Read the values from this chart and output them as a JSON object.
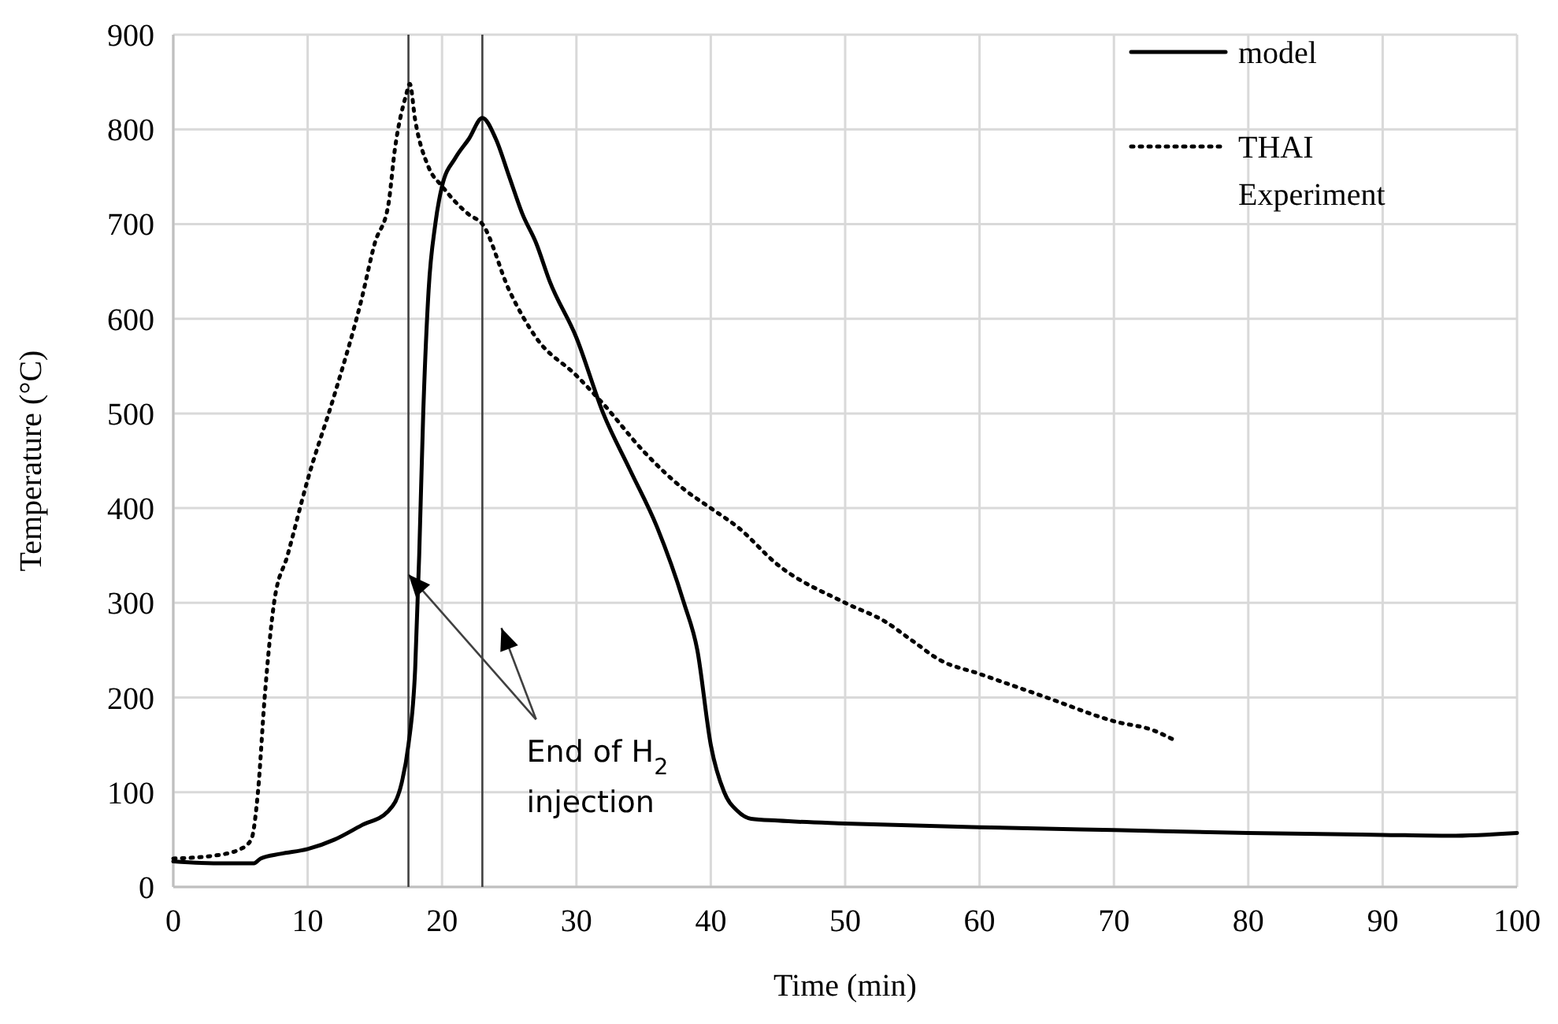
{
  "chart_data": {
    "type": "line",
    "xlabel": "Time (min)",
    "ylabel": "Temperature (°C)",
    "xlim": [
      0,
      100
    ],
    "xticks": [
      0,
      10,
      20,
      30,
      40,
      50,
      60,
      70,
      80,
      90,
      100
    ],
    "ylim": [
      0,
      900
    ],
    "yticks": [
      0,
      100,
      200,
      300,
      400,
      500,
      600,
      700,
      800,
      900
    ],
    "grid": true,
    "legend": "top right",
    "series": [
      {
        "name": "model",
        "color": "#000000",
        "line_style": "solid",
        "x": [
          0,
          3,
          6,
          6.5,
          8,
          10,
          12,
          14,
          16,
          17,
          17.5,
          18,
          18.3,
          18.6,
          19,
          19.5,
          20,
          21,
          22,
          23,
          24,
          25,
          26,
          27,
          28,
          30,
          32,
          34,
          36,
          38,
          39,
          40,
          41,
          42,
          43,
          45,
          50,
          60,
          70,
          80,
          90,
          95,
          100
        ],
        "values": [
          27,
          25,
          25,
          30,
          35,
          40,
          50,
          65,
          80,
          110,
          150,
          230,
          350,
          500,
          630,
          700,
          740,
          770,
          790,
          812,
          790,
          750,
          710,
          680,
          640,
          580,
          500,
          440,
          380,
          300,
          250,
          150,
          100,
          80,
          72,
          70,
          67,
          63,
          60,
          57,
          55,
          54,
          57
        ]
      },
      {
        "name": "THAI Experiment",
        "color": "#000000",
        "line_style": "dotted",
        "x": [
          0,
          3,
          5,
          5.8,
          6.3,
          6.8,
          7.5,
          8.5,
          10,
          12,
          14,
          15,
          16,
          16.5,
          17.3,
          17.6,
          18,
          19,
          20,
          22,
          23,
          25,
          27,
          30,
          32,
          35,
          38,
          40,
          42,
          45,
          50,
          53,
          55,
          57,
          60,
          65,
          70,
          73,
          74.5
        ],
        "values": [
          30,
          33,
          40,
          50,
          100,
          200,
          300,
          350,
          430,
          520,
          620,
          680,
          720,
          780,
          835,
          848,
          810,
          760,
          740,
          710,
          700,
          630,
          580,
          540,
          510,
          460,
          420,
          400,
          380,
          340,
          300,
          280,
          260,
          240,
          225,
          200,
          175,
          165,
          155
        ]
      }
    ],
    "ref_lines": [
      {
        "axis": "x",
        "value": 17.5,
        "color": "#404040"
      },
      {
        "axis": "x",
        "value": 23,
        "color": "#404040"
      }
    ],
    "annotations": [
      {
        "text": "End of H$_{2}$ injection",
        "x": 17.5,
        "y": 330
      }
    ]
  }
}
